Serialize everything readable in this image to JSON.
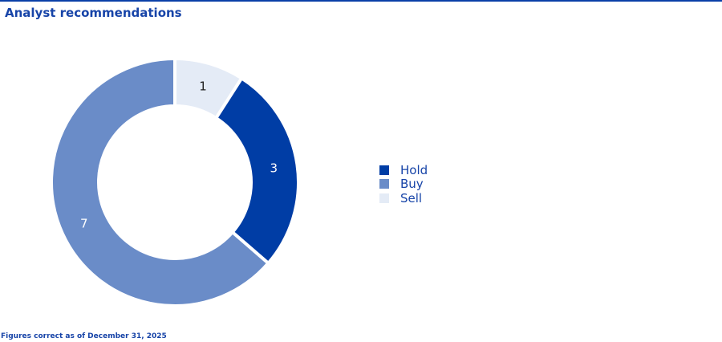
{
  "title": "Analyst recommendations",
  "footer": "Figures correct as of December 31, 2025",
  "colors": {
    "accent": "#0a3fa8"
  },
  "chart_data": {
    "type": "pie",
    "donut": true,
    "title": "Analyst recommendations",
    "slices": [
      {
        "label": "Sell",
        "value": 1,
        "color": "#e4ebf6",
        "text_color": "#222222"
      },
      {
        "label": "Hold",
        "value": 3,
        "color": "#003da5",
        "text_color": "#ffffff"
      },
      {
        "label": "Buy",
        "value": 7,
        "color": "#6a8cc8",
        "text_color": "#ffffff"
      }
    ],
    "legend": {
      "placement": "right",
      "entries": [
        "Hold",
        "Buy",
        "Sell"
      ]
    }
  }
}
